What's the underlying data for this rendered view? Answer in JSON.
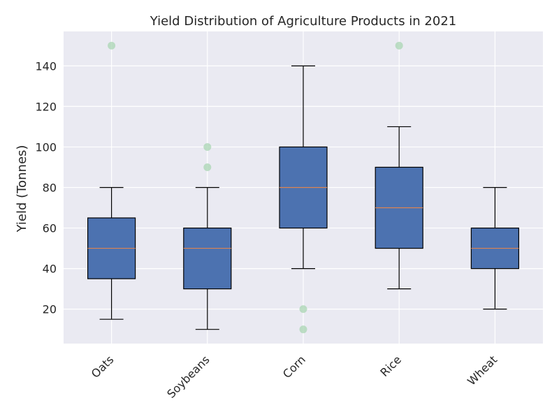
{
  "chart_data": {
    "type": "box",
    "title": "Yield Distribution of Agriculture Products in 2021",
    "xlabel": "",
    "ylabel": "Yield (Tonnes)",
    "categories": [
      "Oats",
      "Soybeans",
      "Corn",
      "Rice",
      "Wheat"
    ],
    "boxes": [
      {
        "whisker_low": 15,
        "q1": 35,
        "median": 50,
        "q3": 65,
        "whisker_high": 80,
        "outliers": [
          150
        ]
      },
      {
        "whisker_low": 10,
        "q1": 30,
        "median": 50,
        "q3": 60,
        "whisker_high": 80,
        "outliers": [
          90,
          100
        ]
      },
      {
        "whisker_low": 40,
        "q1": 60,
        "median": 80,
        "q3": 100,
        "whisker_high": 140,
        "outliers": [
          10,
          20
        ]
      },
      {
        "whisker_low": 30,
        "q1": 50,
        "median": 70,
        "q3": 90,
        "whisker_high": 110,
        "outliers": [
          150
        ]
      },
      {
        "whisker_low": 20,
        "q1": 40,
        "median": 50,
        "q3": 60,
        "whisker_high": 80,
        "outliers": []
      }
    ],
    "yticks": [
      20,
      40,
      60,
      80,
      100,
      120,
      140
    ],
    "ylim": [
      3,
      157
    ],
    "grid": true,
    "colors": {
      "plot_background": "#EAEAF2",
      "grid": "#FFFFFF",
      "box_fill": "#4C72B0",
      "box_edge": "#000000",
      "median": "#DD8452",
      "whisker": "#000000",
      "outlier": "#A9D5B3"
    }
  }
}
